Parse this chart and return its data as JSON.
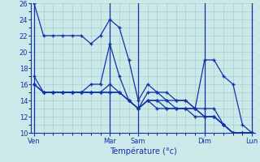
{
  "bg_color": "#cce8e8",
  "grid_color": "#99cccc",
  "line_color": "#1133aa",
  "marker_color": "#1133aa",
  "xlabel": "Température (°c)",
  "ylim": [
    10,
    26
  ],
  "yticks": [
    10,
    12,
    14,
    16,
    18,
    20,
    22,
    24,
    26
  ],
  "x_day_labels": [
    "Ven",
    "Mar",
    "Sam",
    "Dim",
    "Lun"
  ],
  "x_day_positions": [
    0,
    8,
    11,
    18,
    23
  ],
  "n_points": 24,
  "series": [
    [
      26,
      22,
      22,
      22,
      22,
      22,
      21,
      22,
      24,
      23,
      19,
      14,
      16,
      15,
      14,
      14,
      14,
      13,
      19,
      19,
      17,
      16,
      11,
      10
    ],
    [
      17,
      15,
      15,
      15,
      15,
      15,
      16,
      16,
      21,
      17,
      14,
      13,
      15,
      15,
      15,
      14,
      14,
      13,
      13,
      13,
      11,
      10,
      10,
      10
    ],
    [
      16,
      15,
      15,
      15,
      15,
      15,
      15,
      15,
      16,
      15,
      14,
      13,
      14,
      14,
      14,
      13,
      13,
      13,
      12,
      12,
      11,
      10,
      10,
      10
    ],
    [
      16,
      15,
      15,
      15,
      15,
      15,
      15,
      15,
      15,
      15,
      14,
      13,
      14,
      14,
      13,
      13,
      13,
      13,
      12,
      12,
      11,
      10,
      10,
      10
    ],
    [
      16,
      15,
      15,
      15,
      15,
      15,
      15,
      15,
      15,
      15,
      14,
      13,
      14,
      13,
      13,
      13,
      13,
      12,
      12,
      12,
      11,
      10,
      10,
      10
    ]
  ]
}
